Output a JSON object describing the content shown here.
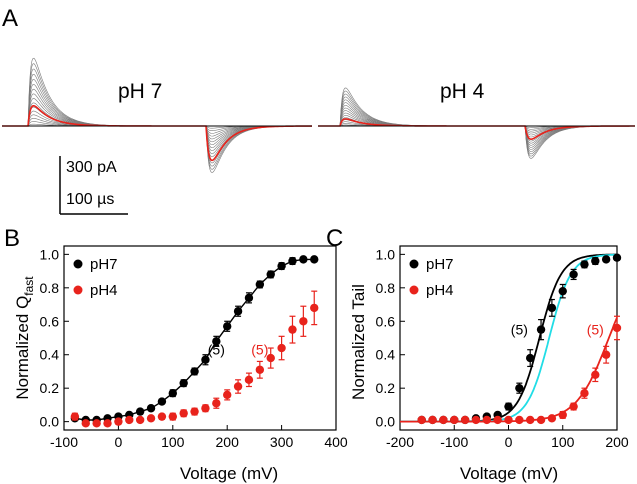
{
  "panels": {
    "A": {
      "label": "A",
      "conditions": [
        "pH 7",
        "pH 4"
      ],
      "scale_bar": {
        "current": "300 pA",
        "time": "100 µs"
      }
    },
    "B": {
      "label": "B"
    },
    "C": {
      "label": "C"
    }
  },
  "colors": {
    "pH7": "#000000",
    "pH4": "#e8231c",
    "fit_cyan": "#21dde6",
    "trace_gray": "#7a7a7a"
  },
  "chart_data": [
    {
      "id": "B",
      "type": "scatter",
      "title": "",
      "xlabel": "Voltage (mV)",
      "ylabel_main": "Normalized Q",
      "ylabel_sub": "fast",
      "xlim": [
        -100,
        400
      ],
      "ylim": [
        -0.05,
        1.05
      ],
      "xticks": [
        -100,
        0,
        100,
        200,
        300,
        400
      ],
      "yticks": [
        0.0,
        0.2,
        0.4,
        0.6,
        0.8,
        1.0
      ],
      "legend": "top-left",
      "series": [
        {
          "name": "pH7",
          "color": "#000000",
          "fit": "solid",
          "x": [
            -80,
            -60,
            -40,
            -20,
            0,
            20,
            40,
            60,
            80,
            100,
            120,
            140,
            160,
            180,
            200,
            220,
            240,
            260,
            280,
            300,
            320,
            340,
            360
          ],
          "y": [
            0.02,
            0.01,
            0.01,
            0.02,
            0.03,
            0.04,
            0.06,
            0.08,
            0.12,
            0.17,
            0.23,
            0.3,
            0.37,
            0.48,
            0.57,
            0.66,
            0.74,
            0.82,
            0.88,
            0.93,
            0.96,
            0.97,
            0.97
          ],
          "err": [
            0.01,
            0.01,
            0.01,
            0.01,
            0.01,
            0.01,
            0.01,
            0.01,
            0.01,
            0.02,
            0.02,
            0.02,
            0.03,
            0.03,
            0.03,
            0.03,
            0.03,
            0.02,
            0.02,
            0.02,
            0.02,
            0.01,
            0.01
          ]
        },
        {
          "name": "pH4",
          "color": "#e8231c",
          "fit": "none",
          "x": [
            -80,
            -60,
            -40,
            -20,
            0,
            20,
            40,
            60,
            80,
            100,
            120,
            140,
            160,
            180,
            200,
            220,
            240,
            260,
            280,
            300,
            320,
            340,
            360
          ],
          "y": [
            0.03,
            -0.01,
            -0.01,
            -0.01,
            0.0,
            0.01,
            0.01,
            0.02,
            0.03,
            0.03,
            0.05,
            0.06,
            0.08,
            0.11,
            0.16,
            0.21,
            0.25,
            0.31,
            0.38,
            0.44,
            0.55,
            0.6,
            0.68
          ],
          "err": [
            0.02,
            0.01,
            0.01,
            0.01,
            0.01,
            0.01,
            0.01,
            0.01,
            0.01,
            0.02,
            0.02,
            0.02,
            0.02,
            0.03,
            0.03,
            0.04,
            0.04,
            0.05,
            0.06,
            0.07,
            0.08,
            0.09,
            0.1
          ]
        }
      ],
      "annotations": [
        {
          "text": "(5)",
          "x": 180,
          "y": 0.4,
          "color": "#000000"
        },
        {
          "text": "(5)",
          "x": 260,
          "y": 0.4,
          "color": "#e8231c"
        }
      ]
    },
    {
      "id": "C",
      "type": "scatter",
      "title": "",
      "xlabel": "Voltage (mV)",
      "ylabel": "Normalized Tail",
      "xlim": [
        -200,
        200
      ],
      "ylim": [
        -0.05,
        1.05
      ],
      "xticks": [
        -200,
        -100,
        0,
        100,
        200
      ],
      "yticks": [
        0.0,
        0.2,
        0.4,
        0.6,
        0.8,
        1.0
      ],
      "legend": "top-left",
      "series": [
        {
          "name": "pH7",
          "color": "#000000",
          "fit": "solid",
          "x": [
            -160,
            -140,
            -120,
            -100,
            -80,
            -60,
            -40,
            -20,
            0,
            20,
            40,
            60,
            80,
            100,
            120,
            140,
            160,
            180,
            200
          ],
          "y": [
            0.01,
            0.01,
            0.01,
            0.01,
            0.01,
            0.02,
            0.03,
            0.04,
            0.09,
            0.2,
            0.38,
            0.55,
            0.68,
            0.78,
            0.88,
            0.94,
            0.96,
            0.97,
            0.98
          ],
          "err": [
            0.01,
            0.01,
            0.01,
            0.01,
            0.01,
            0.01,
            0.01,
            0.01,
            0.02,
            0.03,
            0.05,
            0.06,
            0.05,
            0.04,
            0.03,
            0.02,
            0.02,
            0.01,
            0.01
          ]
        },
        {
          "name": "pH4",
          "color": "#e8231c",
          "fit": "none",
          "x": [
            -160,
            -140,
            -120,
            -100,
            -80,
            -60,
            -40,
            -20,
            0,
            20,
            40,
            60,
            80,
            100,
            120,
            140,
            160,
            180,
            200
          ],
          "y": [
            0.01,
            0.01,
            0.01,
            0.01,
            0.01,
            0.01,
            0.01,
            0.01,
            0.01,
            0.01,
            0.01,
            0.01,
            0.02,
            0.04,
            0.09,
            0.17,
            0.28,
            0.4,
            0.56
          ],
          "err": [
            0.01,
            0.01,
            0.01,
            0.01,
            0.01,
            0.01,
            0.01,
            0.01,
            0.01,
            0.01,
            0.01,
            0.01,
            0.01,
            0.02,
            0.02,
            0.03,
            0.04,
            0.05,
            0.07
          ]
        }
      ],
      "fit_curves": [
        {
          "color": "#000000",
          "v_half": 57,
          "slope": 20
        },
        {
          "color": "#21dde6",
          "v_half": 75,
          "slope": 20
        },
        {
          "color": "#e8231c",
          "v_half": 185,
          "slope": 30
        }
      ],
      "annotations": [
        {
          "text": "(5)",
          "x": 20,
          "y": 0.52,
          "color": "#000000"
        },
        {
          "text": "(5)",
          "x": 160,
          "y": 0.52,
          "color": "#e8231c"
        }
      ]
    }
  ]
}
